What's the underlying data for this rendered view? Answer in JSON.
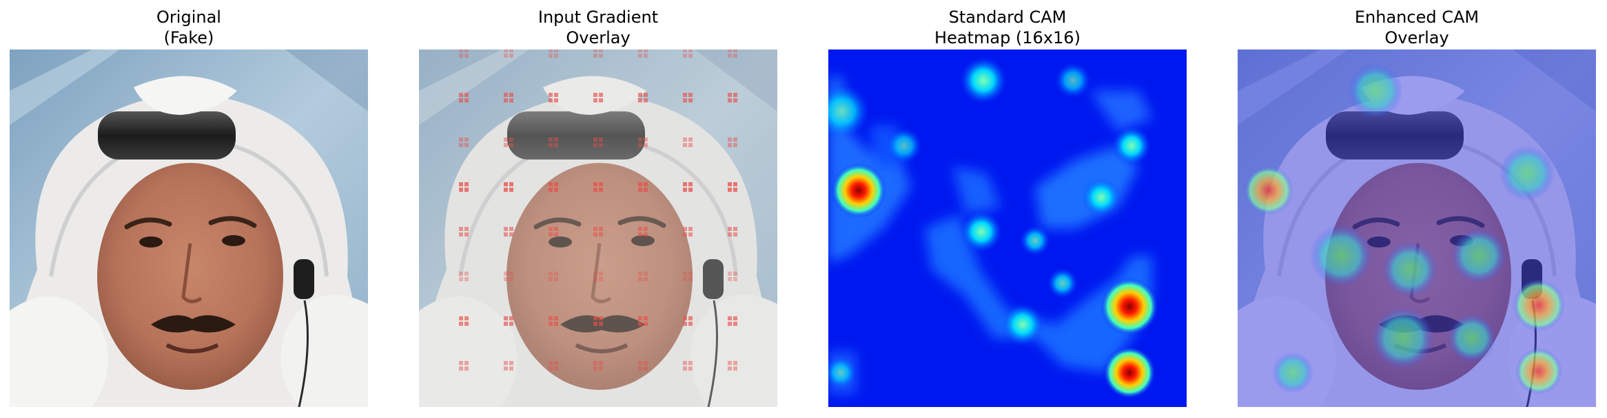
{
  "figure": {
    "panels": [
      {
        "id": "original",
        "title_line1": "Original",
        "title_line2": "(Fake)",
        "content": "face-photo"
      },
      {
        "id": "gradient",
        "title_line1": "Input Gradient",
        "title_line2": "Overlay",
        "content": "face-photo-with-gradient-overlay",
        "overlay_color": "#e8504a"
      },
      {
        "id": "standard-cam",
        "title_line1": "Standard CAM",
        "title_line2": "Heatmap (16x16)",
        "content": "jet-heatmap",
        "colormap": "jet"
      },
      {
        "id": "enhanced-cam",
        "title_line1": "Enhanced CAM",
        "title_line2": "Overlay",
        "content": "face-photo-with-jet-overlay",
        "colormap": "jet"
      }
    ]
  }
}
